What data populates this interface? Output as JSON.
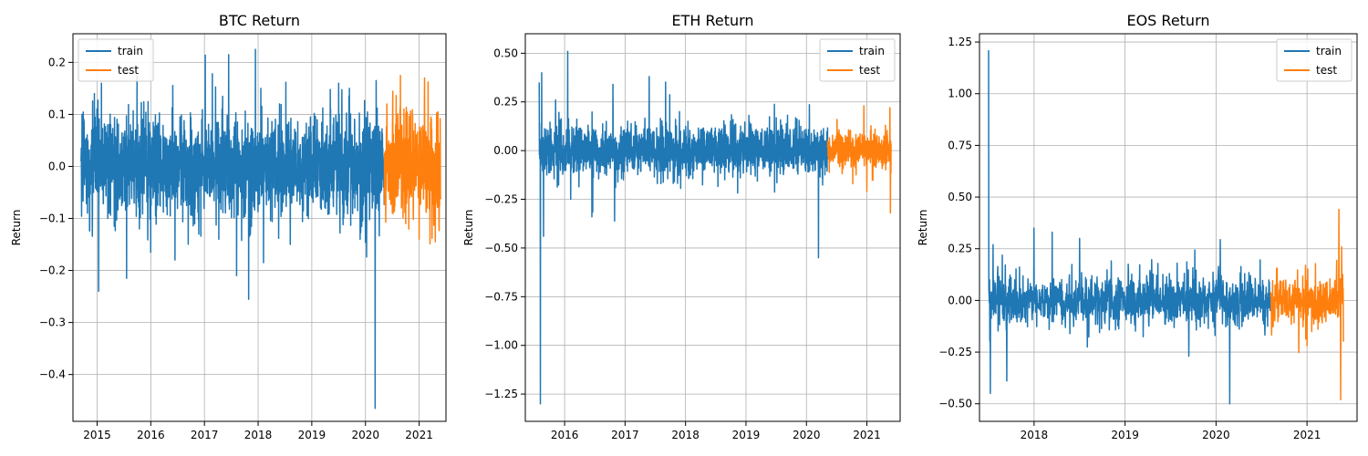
{
  "chart_data": [
    {
      "type": "line",
      "title": "BTC Return",
      "xlabel": "",
      "ylabel": "Return",
      "xlim": [
        2014.55,
        2021.5
      ],
      "ylim": [
        -0.49,
        0.255
      ],
      "xticks": [
        2015,
        2016,
        2017,
        2018,
        2019,
        2020,
        2021
      ],
      "xtick_labels": [
        "2015",
        "2016",
        "2017",
        "2018",
        "2019",
        "2020",
        "2021"
      ],
      "yticks": [
        -0.4,
        -0.3,
        -0.2,
        -0.1,
        0.0,
        0.1,
        0.2
      ],
      "ytick_labels": [
        "−0.4",
        "−0.3",
        "−0.2",
        "−0.1",
        "0.0",
        "0.1",
        "0.2"
      ],
      "grid": true,
      "legend": "top-left",
      "series": [
        {
          "name": "train",
          "color": "#1f77b4",
          "x_range": [
            2014.7,
            2020.35
          ],
          "amplitude": 0.045,
          "x": [
            2014.72,
            2014.82,
            2014.95,
            2015.03,
            2015.08,
            2015.2,
            2015.55,
            2015.62,
            2016.0,
            2016.45,
            2016.95,
            2017.45,
            2017.6,
            2017.7,
            2017.95,
            2018.1,
            2018.05,
            2018.4,
            2018.6,
            2019.5,
            2019.7,
            2019.9,
            2020.18,
            2020.2
          ],
          "y": [
            0.1,
            -0.09,
            0.14,
            -0.24,
            0.16,
            -0.1,
            -0.215,
            0.08,
            -0.165,
            -0.18,
            0.09,
            0.215,
            -0.21,
            0.07,
            0.225,
            -0.185,
            0.15,
            0.12,
            -0.15,
            0.16,
            0.15,
            -0.14,
            -0.465,
            0.165
          ]
        },
        {
          "name": "test",
          "color": "#ff7f0e",
          "x_range": [
            2020.35,
            2021.4
          ],
          "amplitude": 0.05,
          "x": [
            2020.4,
            2020.5,
            2020.75,
            2021.0,
            2021.1,
            2021.15,
            2021.3,
            2021.35
          ],
          "y": [
            0.12,
            -0.09,
            -0.11,
            -0.14,
            0.17,
            -0.08,
            -0.145,
            0.105
          ]
        }
      ]
    },
    {
      "type": "line",
      "title": "ETH Return",
      "xlabel": "",
      "ylabel": "Return",
      "xlim": [
        2015.35,
        2021.55
      ],
      "ylim": [
        -1.39,
        0.6
      ],
      "xticks": [
        2016,
        2017,
        2018,
        2019,
        2020,
        2021
      ],
      "xtick_labels": [
        "2016",
        "2017",
        "2018",
        "2019",
        "2020",
        "2021"
      ],
      "yticks": [
        -1.25,
        -1.0,
        -0.75,
        -0.5,
        -0.25,
        0.0,
        0.25,
        0.5
      ],
      "ytick_labels": [
        "−1.25",
        "−1.00",
        "−0.75",
        "−0.50",
        "−0.25",
        "0.00",
        "0.25",
        "0.50"
      ],
      "grid": true,
      "legend": "top-right",
      "series": [
        {
          "name": "train",
          "color": "#1f77b4",
          "x_range": [
            2015.58,
            2020.35
          ],
          "amplitude": 0.06,
          "x": [
            2015.58,
            2015.6,
            2015.62,
            2015.65,
            2015.85,
            2016.05,
            2016.1,
            2016.45,
            2016.8,
            2017.4,
            2017.9,
            2020.2,
            2020.25
          ],
          "y": [
            0.35,
            -1.3,
            0.4,
            -0.44,
            0.26,
            0.51,
            -0.25,
            -0.34,
            0.34,
            0.38,
            0.2,
            -0.55,
            0.08
          ]
        },
        {
          "name": "test",
          "color": "#ff7f0e",
          "x_range": [
            2020.35,
            2021.4
          ],
          "amplitude": 0.05,
          "x": [
            2020.95,
            2021.0,
            2021.38,
            2021.39
          ],
          "y": [
            0.23,
            -0.21,
            0.22,
            -0.32
          ]
        }
      ]
    },
    {
      "type": "line",
      "title": "EOS Return",
      "xlabel": "",
      "ylabel": "Return",
      "xlim": [
        2017.4,
        2021.55
      ],
      "ylim": [
        -0.585,
        1.29
      ],
      "xticks": [
        2018,
        2019,
        2020,
        2021
      ],
      "xtick_labels": [
        "2018",
        "2019",
        "2020",
        "2021"
      ],
      "yticks": [
        -0.5,
        -0.25,
        0.0,
        0.25,
        0.5,
        0.75,
        1.0,
        1.25
      ],
      "ytick_labels": [
        "−0.50",
        "−0.25",
        "0.00",
        "0.25",
        "0.50",
        "0.75",
        "1.00",
        "1.25"
      ],
      "grid": true,
      "legend": "top-right",
      "series": [
        {
          "name": "train",
          "color": "#1f77b4",
          "x_range": [
            2017.5,
            2020.6
          ],
          "amplitude": 0.06,
          "x": [
            2017.5,
            2017.52,
            2017.55,
            2017.7,
            2018.0,
            2018.2,
            2018.5,
            2019.7,
            2020.15
          ],
          "y": [
            1.21,
            -0.45,
            0.27,
            -0.39,
            0.35,
            0.33,
            0.3,
            -0.27,
            -0.5
          ]
        },
        {
          "name": "test",
          "color": "#ff7f0e",
          "x_range": [
            2020.6,
            2021.4
          ],
          "amplitude": 0.06,
          "x": [
            2021.0,
            2021.35,
            2021.37,
            2021.38,
            2021.4
          ],
          "y": [
            -0.22,
            0.44,
            -0.48,
            0.26,
            -0.2
          ]
        }
      ]
    }
  ]
}
